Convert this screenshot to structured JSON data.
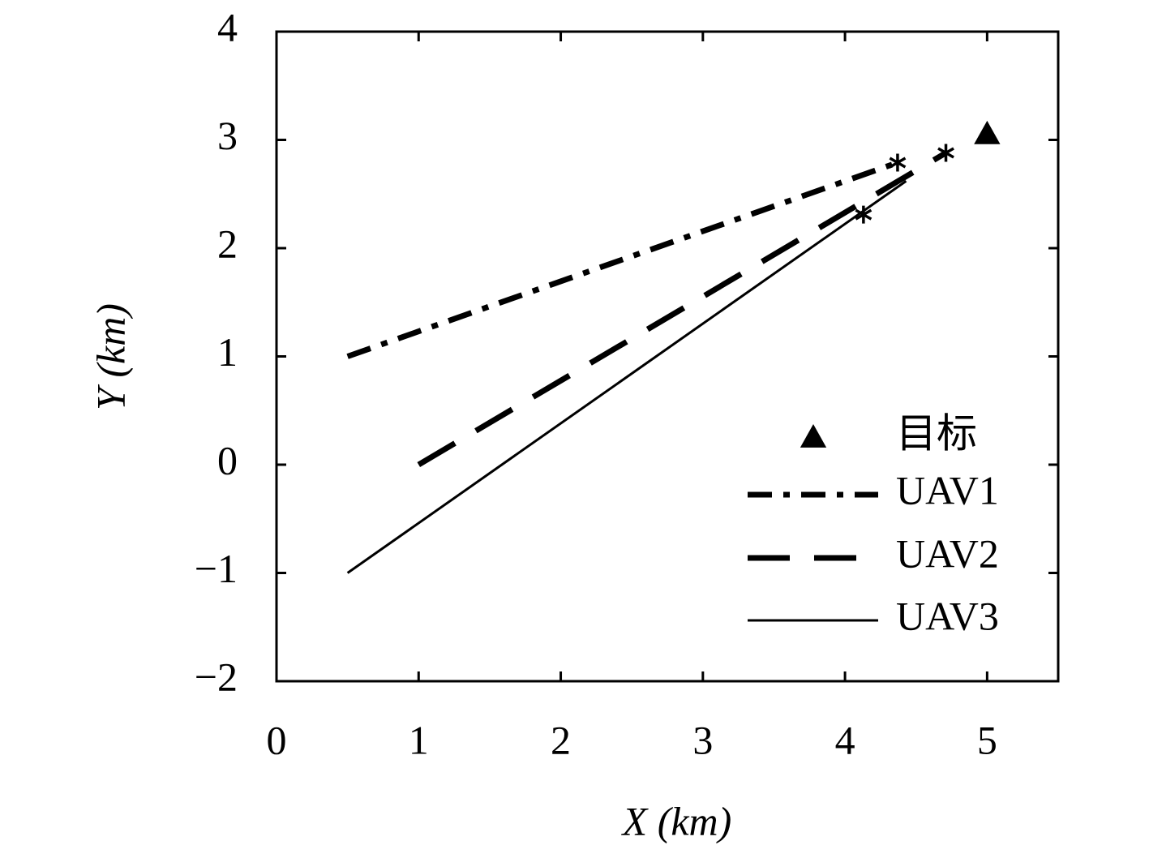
{
  "chart_data": {
    "type": "line",
    "xlabel": "X (km)",
    "ylabel": "Y (km)",
    "xlim": [
      0,
      5.5
    ],
    "ylim": [
      -2,
      4
    ],
    "xticks": [
      0,
      1,
      2,
      3,
      4,
      5
    ],
    "yticks": [
      {
        "value": -2,
        "label": "−2"
      },
      {
        "value": -1,
        "label": "−1"
      },
      0,
      1,
      2,
      3,
      4
    ],
    "legend": "lower right",
    "series": [
      {
        "name": "目标",
        "color": "#000000",
        "marker": "triangle",
        "x": [
          5.0
        ],
        "values": [
          3.05
        ]
      },
      {
        "name": "UAV1",
        "color": "#000000",
        "style": "dashdot",
        "x": [
          0.5,
          4.37
        ],
        "values": [
          1,
          2.79
        ],
        "star": [
          4.37,
          2.79
        ]
      },
      {
        "name": "UAV2",
        "color": "#000000",
        "style": "dashed",
        "x": [
          1,
          4.71
        ],
        "values": [
          0,
          2.88
        ],
        "star": [
          4.71,
          2.88
        ]
      },
      {
        "name": "UAV3",
        "color": "#000000",
        "style": "solid",
        "x": [
          0.5,
          4.43
        ],
        "values": [
          -1,
          2.62
        ],
        "star": [
          4.13,
          2.31
        ]
      }
    ]
  }
}
